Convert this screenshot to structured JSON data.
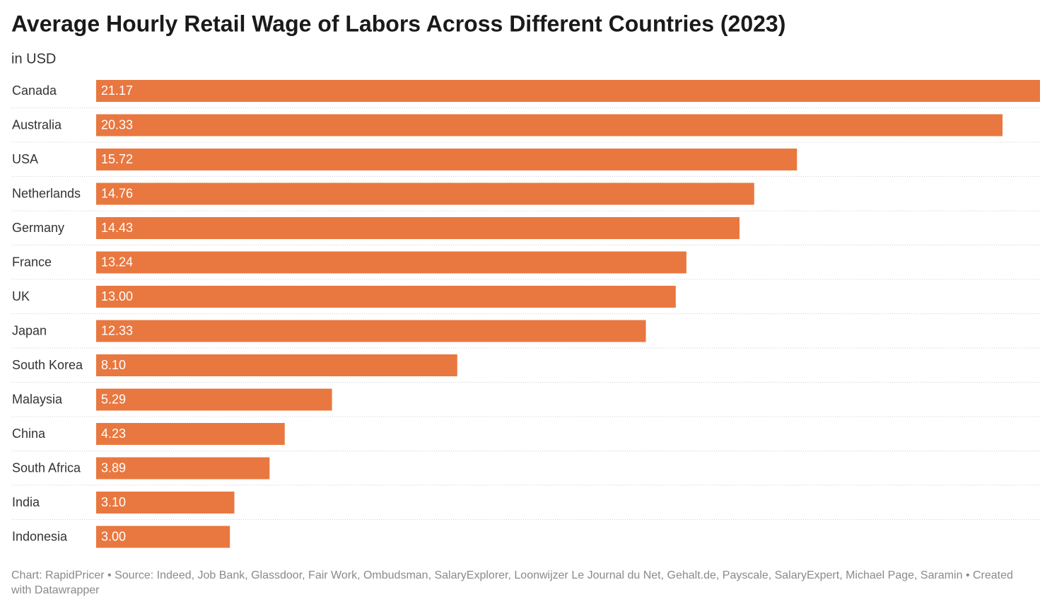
{
  "chart_data": {
    "type": "bar",
    "orientation": "horizontal",
    "title": "Average Hourly Retail Wage of Labors Across Different Countries (2023)",
    "subtitle": "in USD",
    "categories": [
      "Canada",
      "Australia",
      "USA",
      "Netherlands",
      "Germany",
      "France",
      "UK",
      "Japan",
      "South Korea",
      "Malaysia",
      "China",
      "South Africa",
      "India",
      "Indonesia"
    ],
    "values": [
      21.17,
      20.33,
      15.72,
      14.76,
      14.43,
      13.24,
      13.0,
      12.33,
      8.1,
      5.29,
      4.23,
      3.89,
      3.1,
      3.0
    ],
    "value_labels": [
      "21.17",
      "20.33",
      "15.72",
      "14.76",
      "14.43",
      "13.24",
      "13.00",
      "12.33",
      "8.10",
      "5.29",
      "4.23",
      "3.89",
      "3.10",
      "3.00"
    ],
    "color": "#e87840",
    "footer": "Chart: RapidPricer • Source: Indeed, Job Bank, Glassdoor, Fair Work, Ombudsman, SalaryExplorer, Loonwijzer Le Journal du Net, Gehalt.de, Payscale, SalaryExpert, Michael Page, Saramin • Created with Datawrapper"
  }
}
